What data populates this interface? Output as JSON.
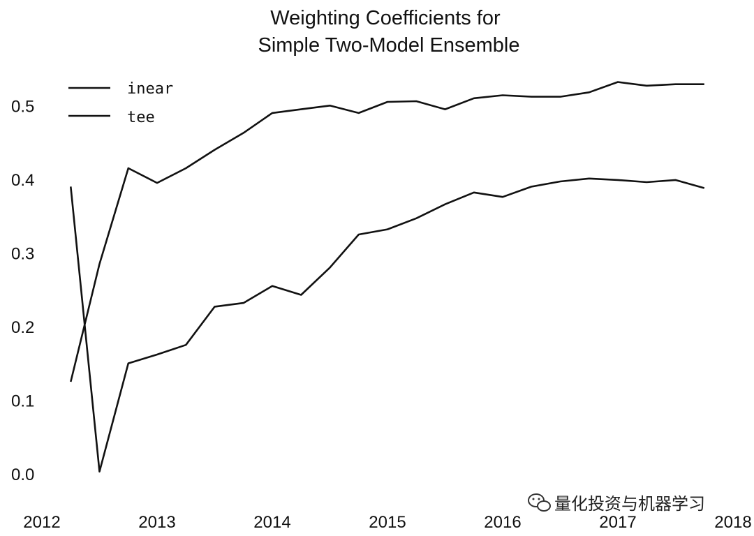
{
  "chart_data": {
    "type": "line",
    "title_lines": [
      "Weighting Coefficients for",
      "Simple Two-Model Ensemble"
    ],
    "xlabel": "",
    "ylabel": "",
    "xlim": [
      2012.0,
      2018.0
    ],
    "ylim": [
      -0.02,
      0.56
    ],
    "x_ticks": [
      "2012",
      "2013",
      "2014",
      "2015",
      "2016",
      "2017",
      "2018"
    ],
    "y_ticks": [
      "0.0",
      "0.1",
      "0.2",
      "0.3",
      "0.4",
      "0.5"
    ],
    "grid": false,
    "legend_position": "top-left",
    "colors": {
      "line": "#111111",
      "background": "#ffffff"
    },
    "series": [
      {
        "name": "inear",
        "x": [
          2012.25,
          2012.5,
          2012.75,
          2013.0,
          2013.25,
          2013.5,
          2013.75,
          2014.0,
          2014.25,
          2014.5,
          2014.75,
          2015.0,
          2015.25,
          2015.5,
          2015.75,
          2016.0,
          2016.25,
          2016.5,
          2016.75,
          2017.0,
          2017.25,
          2017.5,
          2017.75
        ],
        "y": [
          0.125,
          0.285,
          0.415,
          0.395,
          0.415,
          0.44,
          0.463,
          0.49,
          0.495,
          0.5,
          0.49,
          0.505,
          0.506,
          0.495,
          0.51,
          0.514,
          0.512,
          0.512,
          0.518,
          0.532,
          0.527,
          0.529,
          0.529
        ]
      },
      {
        "name": "tee",
        "x": [
          2012.25,
          2012.5,
          2012.75,
          2013.0,
          2013.25,
          2013.5,
          2013.75,
          2014.0,
          2014.25,
          2014.5,
          2014.75,
          2015.0,
          2015.25,
          2015.5,
          2015.75,
          2016.0,
          2016.25,
          2016.5,
          2016.75,
          2017.0,
          2017.25,
          2017.5,
          2017.75
        ],
        "y": [
          0.39,
          0.003,
          0.15,
          0.162,
          0.175,
          0.227,
          0.232,
          0.255,
          0.243,
          0.28,
          0.325,
          0.332,
          0.347,
          0.366,
          0.382,
          0.376,
          0.39,
          0.397,
          0.401,
          0.399,
          0.396,
          0.399,
          0.388
        ]
      }
    ]
  },
  "watermark": {
    "icon": "wechat-icon",
    "text": "量化投资与机器学习"
  }
}
